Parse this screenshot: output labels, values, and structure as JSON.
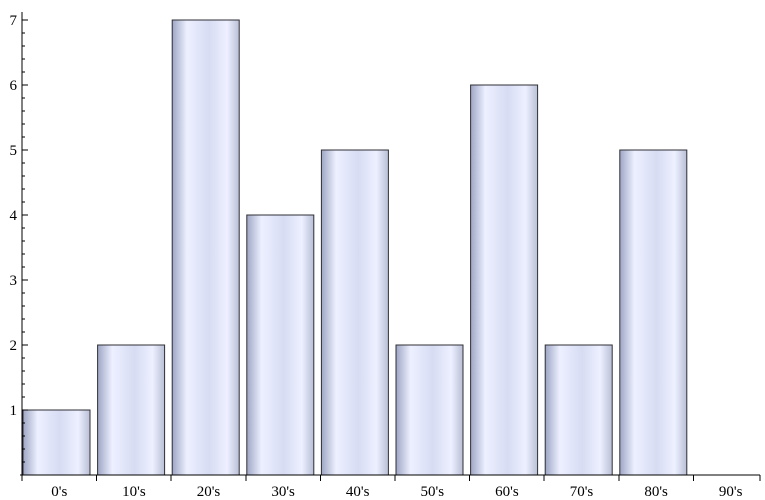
{
  "chart_data": {
    "type": "bar",
    "title": "",
    "xlabel": "",
    "ylabel": "",
    "categories": [
      "0's",
      "10's",
      "20's",
      "30's",
      "40's",
      "50's",
      "60's",
      "70's",
      "80's",
      "90's"
    ],
    "values": [
      1,
      2,
      7,
      4,
      5,
      2,
      6,
      2,
      5,
      0
    ],
    "ylim": [
      0,
      7.1
    ],
    "yticks": [
      "1",
      "2",
      "3",
      "4",
      "5",
      "6",
      "7"
    ],
    "grid": false,
    "colors": {
      "bar_edge": "#b9bfd6",
      "bar_mid": "#d7dcf3",
      "bar_highlight": "#edf0ff",
      "bar_shadow": "#9ea6c4",
      "bar_stroke": "#2f2f36",
      "axis": "#000000"
    }
  }
}
